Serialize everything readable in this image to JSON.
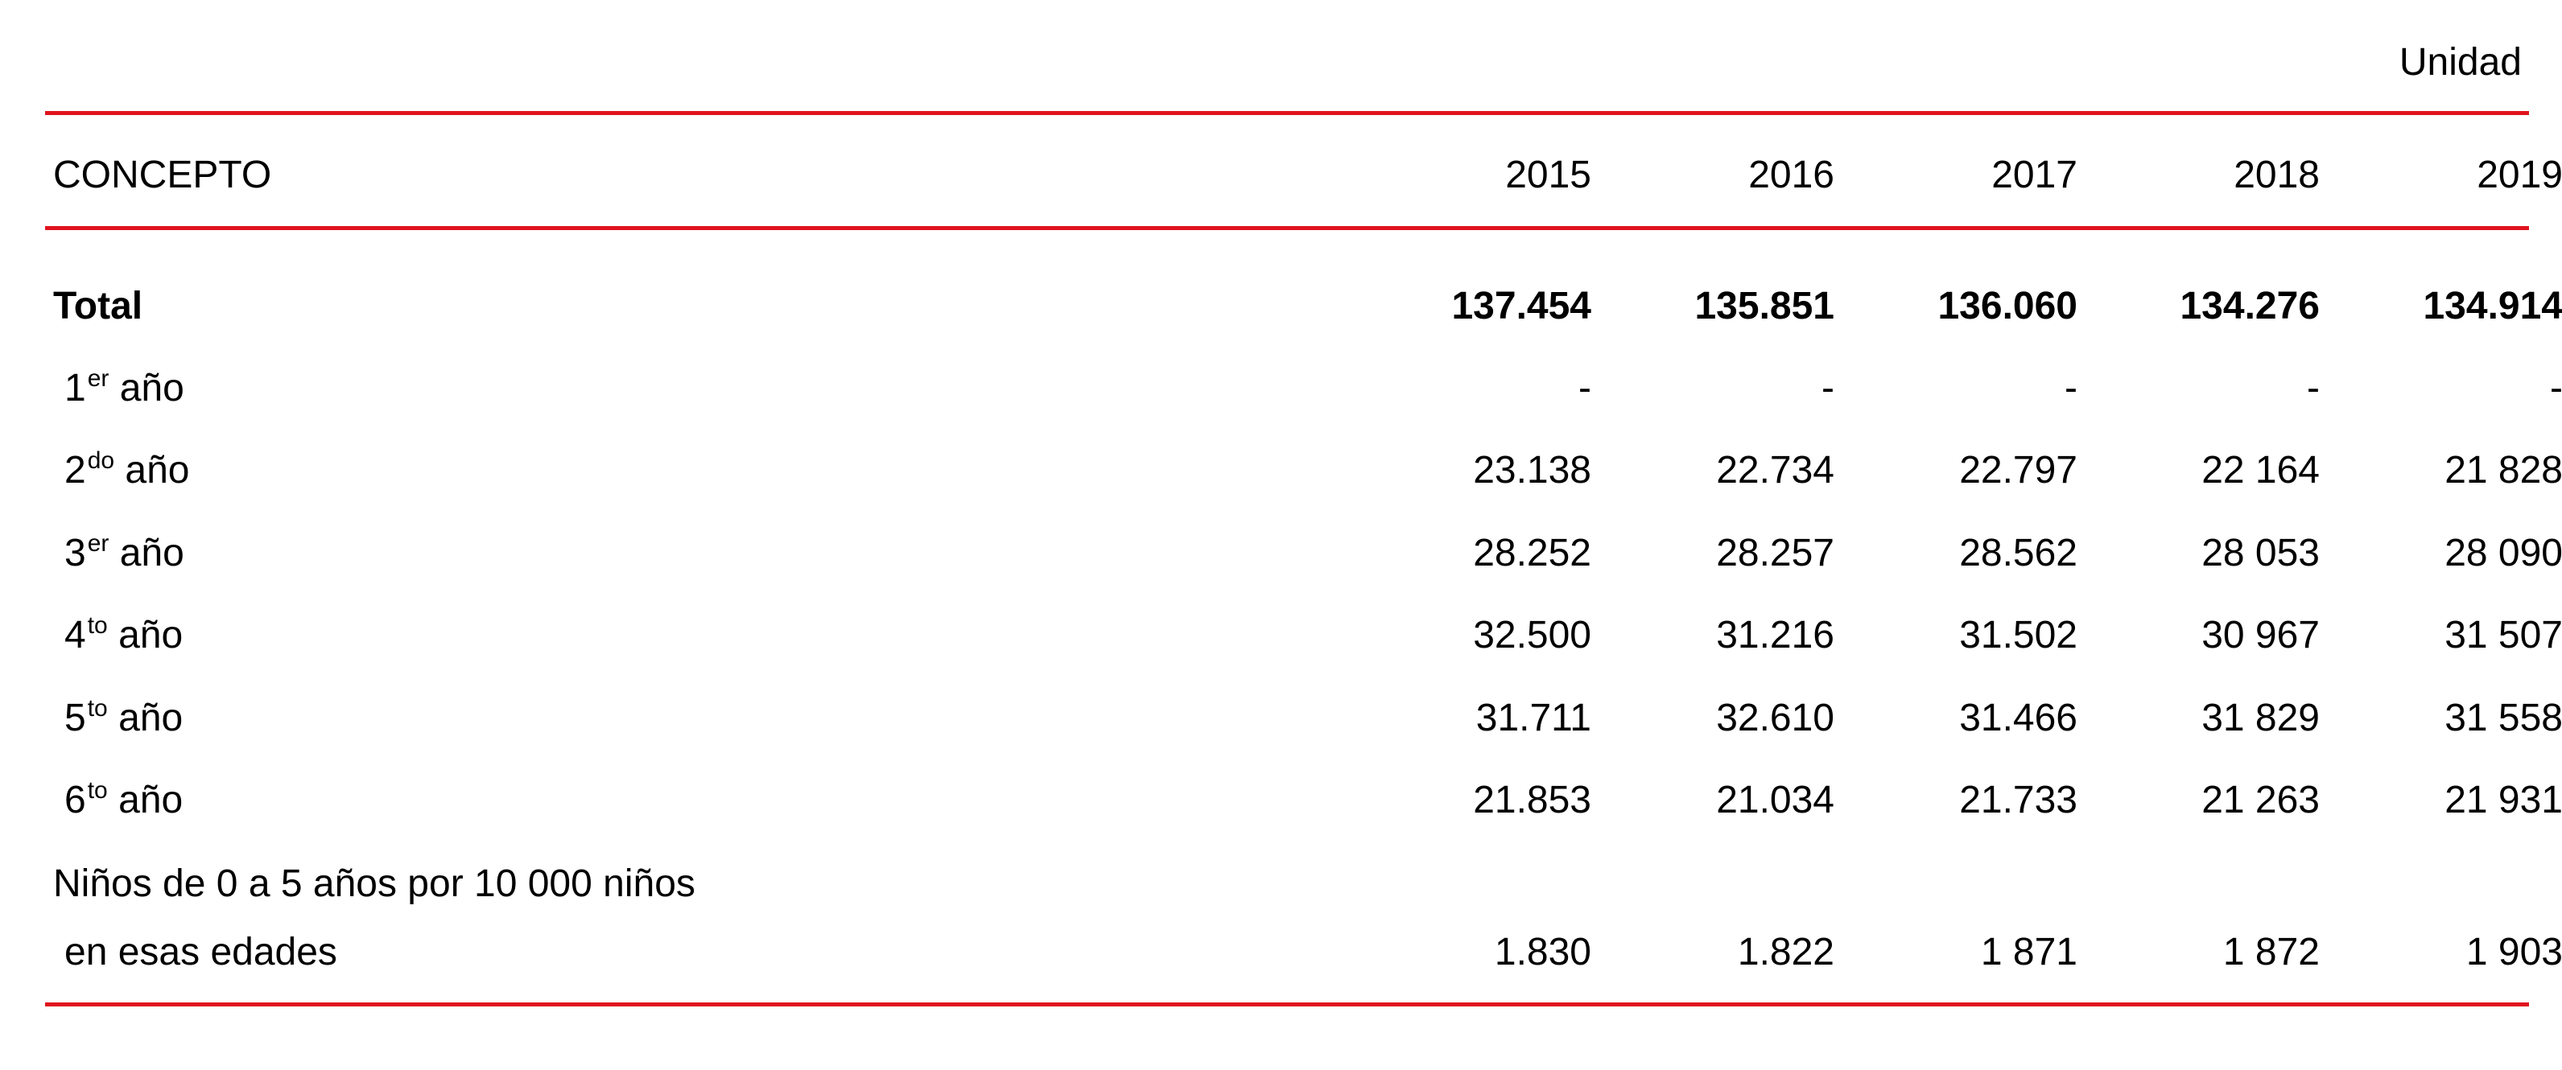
{
  "unit_label": "Unidad",
  "header": {
    "concept": "CONCEPTO",
    "years": [
      "2015",
      "2016",
      "2017",
      "2018",
      "2019"
    ]
  },
  "rows": [
    {
      "label": "Total",
      "values": [
        "137.454",
        "135.851",
        "136.060",
        "134.276",
        "134.914"
      ]
    },
    {
      "label_num": "1",
      "label_sup": "er",
      "label_rest": " año",
      "values": [
        "-",
        "-",
        "-",
        "-",
        "-"
      ]
    },
    {
      "label_num": "2",
      "label_sup": "do",
      "label_rest": " año",
      "values": [
        "23.138",
        "22.734",
        "22.797",
        "22 164",
        "21 828"
      ]
    },
    {
      "label_num": "3",
      "label_sup": "er",
      "label_rest": " año",
      "values": [
        "28.252",
        "28.257",
        "28.562",
        "28 053",
        "28 090"
      ]
    },
    {
      "label_num": "4",
      "label_sup": "to",
      "label_rest": " año",
      "values": [
        "32.500",
        "31.216",
        "31.502",
        "30 967",
        "31 507"
      ]
    },
    {
      "label_num": "5",
      "label_sup": "to",
      "label_rest": " año",
      "values": [
        "31.711",
        "32.610",
        "31.466",
        "31 829",
        "31 558"
      ]
    },
    {
      "label_num": "6",
      "label_sup": "to",
      "label_rest": " año",
      "values": [
        "21.853",
        "21.034",
        "21.733",
        "21 263",
        "21 931"
      ]
    },
    {
      "label_line1": "Niños de 0 a 5 años por 10 000 niños",
      "label_line2": "en esas edades",
      "values": [
        "1.830",
        "1.822",
        "1 871",
        "1 872",
        "1 903"
      ]
    }
  ],
  "colors": {
    "rule": "#e0141e",
    "text": "#000000"
  }
}
